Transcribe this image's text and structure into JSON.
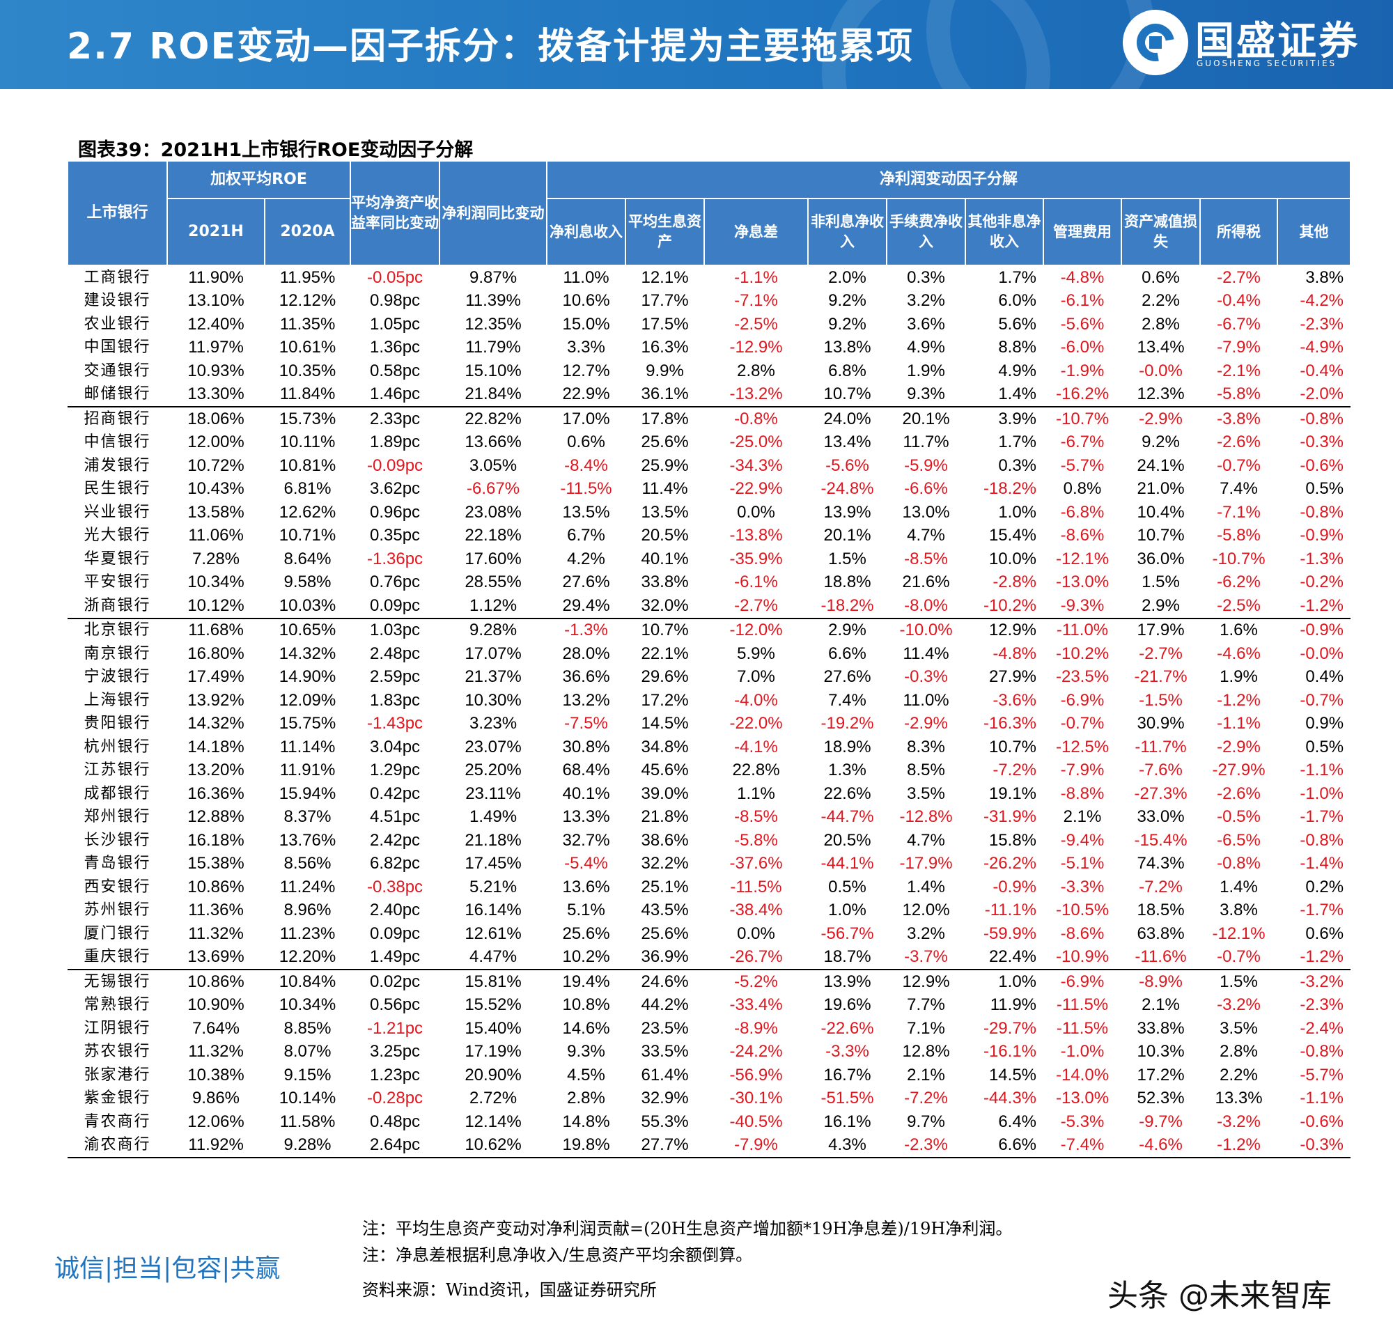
{
  "header": {
    "title": "2.7 ROE变动—因子拆分：拨备计提为主要拖累项",
    "logo_cn": "国盛证券",
    "logo_en": "GUOSHENG SECURITIES"
  },
  "caption": "图表39：2021H1上市银行ROE变动因子分解",
  "table": {
    "headers": {
      "bank": "上市银行",
      "weighted_roe": "加权平均ROE",
      "y2021h": "2021H",
      "y2020a": "2020A",
      "roe_change": "平均净资产收益率同比变动",
      "np_change": "净利润同比变动",
      "factor_group": "净利润变动因子分解",
      "factors": [
        "净利息收入",
        "平均生息资产",
        "净息差",
        "非利息净收入",
        "手续费净收入",
        "其他非息净收入",
        "管理费用",
        "资产减值损失",
        "所得税",
        "其他"
      ]
    },
    "rows": [
      [
        "工商银行",
        "11.90%",
        "11.95%",
        "-0.05pc",
        "9.87%",
        "11.0%",
        "12.1%",
        "-1.1%",
        "2.0%",
        "0.3%",
        "1.7%",
        "-4.8%",
        "0.6%",
        "-2.7%",
        "3.8%"
      ],
      [
        "建设银行",
        "13.10%",
        "12.12%",
        "0.98pc",
        "11.39%",
        "10.6%",
        "17.7%",
        "-7.1%",
        "9.2%",
        "3.2%",
        "6.0%",
        "-6.1%",
        "2.2%",
        "-0.4%",
        "-4.2%"
      ],
      [
        "农业银行",
        "12.40%",
        "11.35%",
        "1.05pc",
        "12.35%",
        "15.0%",
        "17.5%",
        "-2.5%",
        "9.2%",
        "3.6%",
        "5.6%",
        "-5.6%",
        "2.8%",
        "-6.7%",
        "-2.3%"
      ],
      [
        "中国银行",
        "11.97%",
        "10.61%",
        "1.36pc",
        "11.79%",
        "3.3%",
        "16.3%",
        "-12.9%",
        "13.8%",
        "4.9%",
        "8.8%",
        "-6.0%",
        "13.4%",
        "-7.9%",
        "-4.9%"
      ],
      [
        "交通银行",
        "10.93%",
        "10.35%",
        "0.58pc",
        "15.10%",
        "12.7%",
        "9.9%",
        "2.8%",
        "6.8%",
        "1.9%",
        "4.9%",
        "-1.9%",
        "-0.0%",
        "-2.1%",
        "-0.4%"
      ],
      [
        "邮储银行",
        "13.30%",
        "11.84%",
        "1.46pc",
        "21.84%",
        "22.9%",
        "36.1%",
        "-13.2%",
        "10.7%",
        "9.3%",
        "1.4%",
        "-16.2%",
        "12.3%",
        "-5.8%",
        "-2.0%"
      ],
      [
        "招商银行",
        "18.06%",
        "15.73%",
        "2.33pc",
        "22.82%",
        "17.0%",
        "17.8%",
        "-0.8%",
        "24.0%",
        "20.1%",
        "3.9%",
        "-10.7%",
        "-2.9%",
        "-3.8%",
        "-0.8%"
      ],
      [
        "中信银行",
        "12.00%",
        "10.11%",
        "1.89pc",
        "13.66%",
        "0.6%",
        "25.6%",
        "-25.0%",
        "13.4%",
        "11.7%",
        "1.7%",
        "-6.7%",
        "9.2%",
        "-2.6%",
        "-0.3%"
      ],
      [
        "浦发银行",
        "10.72%",
        "10.81%",
        "-0.09pc",
        "3.05%",
        "-8.4%",
        "25.9%",
        "-34.3%",
        "-5.6%",
        "-5.9%",
        "0.3%",
        "-5.7%",
        "24.1%",
        "-0.7%",
        "-0.6%"
      ],
      [
        "民生银行",
        "10.43%",
        "6.81%",
        "3.62pc",
        "-6.67%",
        "-11.5%",
        "11.4%",
        "-22.9%",
        "-24.8%",
        "-6.6%",
        "-18.2%",
        "0.8%",
        "21.0%",
        "7.4%",
        "0.5%"
      ],
      [
        "兴业银行",
        "13.58%",
        "12.62%",
        "0.96pc",
        "23.08%",
        "13.5%",
        "13.5%",
        "0.0%",
        "13.9%",
        "13.0%",
        "1.0%",
        "-6.8%",
        "10.4%",
        "-7.1%",
        "-0.8%"
      ],
      [
        "光大银行",
        "11.06%",
        "10.71%",
        "0.35pc",
        "22.18%",
        "6.7%",
        "20.5%",
        "-13.8%",
        "20.1%",
        "4.7%",
        "15.4%",
        "-8.6%",
        "10.7%",
        "-5.8%",
        "-0.9%"
      ],
      [
        "华夏银行",
        "7.28%",
        "8.64%",
        "-1.36pc",
        "17.60%",
        "4.2%",
        "40.1%",
        "-35.9%",
        "1.5%",
        "-8.5%",
        "10.0%",
        "-12.1%",
        "36.0%",
        "-10.7%",
        "-1.3%"
      ],
      [
        "平安银行",
        "10.34%",
        "9.58%",
        "0.76pc",
        "28.55%",
        "27.6%",
        "33.8%",
        "-6.1%",
        "18.8%",
        "21.6%",
        "-2.8%",
        "-13.0%",
        "1.5%",
        "-6.2%",
        "-0.2%"
      ],
      [
        "浙商银行",
        "10.12%",
        "10.03%",
        "0.09pc",
        "1.12%",
        "29.4%",
        "32.0%",
        "-2.7%",
        "-18.2%",
        "-8.0%",
        "-10.2%",
        "-9.3%",
        "2.9%",
        "-2.5%",
        "-1.2%"
      ],
      [
        "北京银行",
        "11.68%",
        "10.65%",
        "1.03pc",
        "9.28%",
        "-1.3%",
        "10.7%",
        "-12.0%",
        "2.9%",
        "-10.0%",
        "12.9%",
        "-11.0%",
        "17.9%",
        "1.6%",
        "-0.9%"
      ],
      [
        "南京银行",
        "16.80%",
        "14.32%",
        "2.48pc",
        "17.07%",
        "28.0%",
        "22.1%",
        "5.9%",
        "6.6%",
        "11.4%",
        "-4.8%",
        "-10.2%",
        "-2.7%",
        "-4.6%",
        "-0.0%"
      ],
      [
        "宁波银行",
        "17.49%",
        "14.90%",
        "2.59pc",
        "21.37%",
        "36.6%",
        "29.6%",
        "7.0%",
        "27.6%",
        "-0.3%",
        "27.9%",
        "-23.5%",
        "-21.7%",
        "1.9%",
        "0.4%"
      ],
      [
        "上海银行",
        "13.92%",
        "12.09%",
        "1.83pc",
        "10.30%",
        "13.2%",
        "17.2%",
        "-4.0%",
        "7.4%",
        "11.0%",
        "-3.6%",
        "-6.9%",
        "-1.5%",
        "-1.2%",
        "-0.7%"
      ],
      [
        "贵阳银行",
        "14.32%",
        "15.75%",
        "-1.43pc",
        "3.23%",
        "-7.5%",
        "14.5%",
        "-22.0%",
        "-19.2%",
        "-2.9%",
        "-16.3%",
        "-0.7%",
        "30.9%",
        "-1.1%",
        "0.9%"
      ],
      [
        "杭州银行",
        "14.18%",
        "11.14%",
        "3.04pc",
        "23.07%",
        "30.8%",
        "34.8%",
        "-4.1%",
        "18.9%",
        "8.3%",
        "10.7%",
        "-12.5%",
        "-11.7%",
        "-2.9%",
        "0.5%"
      ],
      [
        "江苏银行",
        "13.20%",
        "11.91%",
        "1.29pc",
        "25.20%",
        "68.4%",
        "45.6%",
        "22.8%",
        "1.3%",
        "8.5%",
        "-7.2%",
        "-7.9%",
        "-7.6%",
        "-27.9%",
        "-1.1%"
      ],
      [
        "成都银行",
        "16.36%",
        "15.94%",
        "0.42pc",
        "23.11%",
        "40.1%",
        "39.0%",
        "1.1%",
        "22.6%",
        "3.5%",
        "19.1%",
        "-8.8%",
        "-27.3%",
        "-2.6%",
        "-1.0%"
      ],
      [
        "郑州银行",
        "12.88%",
        "8.37%",
        "4.51pc",
        "1.49%",
        "13.3%",
        "21.8%",
        "-8.5%",
        "-44.7%",
        "-12.8%",
        "-31.9%",
        "2.1%",
        "33.0%",
        "-0.5%",
        "-1.7%"
      ],
      [
        "长沙银行",
        "16.18%",
        "13.76%",
        "2.42pc",
        "21.18%",
        "32.7%",
        "38.6%",
        "-5.8%",
        "20.5%",
        "4.7%",
        "15.8%",
        "-9.4%",
        "-15.4%",
        "-6.5%",
        "-0.8%"
      ],
      [
        "青岛银行",
        "15.38%",
        "8.56%",
        "6.82pc",
        "17.45%",
        "-5.4%",
        "32.2%",
        "-37.6%",
        "-44.1%",
        "-17.9%",
        "-26.2%",
        "-5.1%",
        "74.3%",
        "-0.8%",
        "-1.4%"
      ],
      [
        "西安银行",
        "10.86%",
        "11.24%",
        "-0.38pc",
        "5.21%",
        "13.6%",
        "25.1%",
        "-11.5%",
        "0.5%",
        "1.4%",
        "-0.9%",
        "-3.3%",
        "-7.2%",
        "1.4%",
        "0.2%"
      ],
      [
        "苏州银行",
        "11.36%",
        "8.96%",
        "2.40pc",
        "16.14%",
        "5.1%",
        "43.5%",
        "-38.4%",
        "1.0%",
        "12.0%",
        "-11.1%",
        "-10.5%",
        "18.5%",
        "3.8%",
        "-1.7%"
      ],
      [
        "厦门银行",
        "11.32%",
        "11.23%",
        "0.09pc",
        "12.61%",
        "25.6%",
        "25.6%",
        "0.0%",
        "-56.7%",
        "3.2%",
        "-59.9%",
        "-8.6%",
        "63.8%",
        "-12.1%",
        "0.6%"
      ],
      [
        "重庆银行",
        "13.69%",
        "12.20%",
        "1.49pc",
        "4.47%",
        "10.2%",
        "36.9%",
        "-26.7%",
        "18.7%",
        "-3.7%",
        "22.4%",
        "-10.9%",
        "-11.6%",
        "-0.7%",
        "-1.2%"
      ],
      [
        "无锡银行",
        "10.86%",
        "10.84%",
        "0.02pc",
        "15.81%",
        "19.4%",
        "24.6%",
        "-5.2%",
        "13.9%",
        "12.9%",
        "1.0%",
        "-6.9%",
        "-8.9%",
        "1.5%",
        "-3.2%"
      ],
      [
        "常熟银行",
        "10.90%",
        "10.34%",
        "0.56pc",
        "15.52%",
        "10.8%",
        "44.2%",
        "-33.4%",
        "19.6%",
        "7.7%",
        "11.9%",
        "-11.5%",
        "2.1%",
        "-3.2%",
        "-2.3%"
      ],
      [
        "江阴银行",
        "7.64%",
        "8.85%",
        "-1.21pc",
        "15.40%",
        "14.6%",
        "23.5%",
        "-8.9%",
        "-22.6%",
        "7.1%",
        "-29.7%",
        "-11.5%",
        "33.8%",
        "3.5%",
        "-2.4%"
      ],
      [
        "苏农银行",
        "11.32%",
        "8.07%",
        "3.25pc",
        "17.19%",
        "9.3%",
        "33.5%",
        "-24.2%",
        "-3.3%",
        "12.8%",
        "-16.1%",
        "-1.0%",
        "10.3%",
        "2.8%",
        "-0.8%"
      ],
      [
        "张家港行",
        "10.38%",
        "9.15%",
        "1.23pc",
        "20.90%",
        "4.5%",
        "61.4%",
        "-56.9%",
        "16.7%",
        "2.1%",
        "14.5%",
        "-14.0%",
        "17.2%",
        "2.2%",
        "-5.7%"
      ],
      [
        "紫金银行",
        "9.86%",
        "10.14%",
        "-0.28pc",
        "2.72%",
        "2.8%",
        "32.9%",
        "-30.1%",
        "-51.5%",
        "-7.2%",
        "-44.3%",
        "-13.0%",
        "52.3%",
        "13.3%",
        "-1.1%"
      ],
      [
        "青农商行",
        "12.06%",
        "11.58%",
        "0.48pc",
        "12.14%",
        "14.8%",
        "55.3%",
        "-40.5%",
        "16.1%",
        "9.7%",
        "6.4%",
        "-5.3%",
        "-9.7%",
        "-3.2%",
        "-0.6%"
      ],
      [
        "渝农商行",
        "11.92%",
        "9.28%",
        "2.64pc",
        "10.62%",
        "19.8%",
        "27.7%",
        "-7.9%",
        "4.3%",
        "-2.3%",
        "6.6%",
        "-7.4%",
        "-4.6%",
        "-1.2%",
        "-0.3%"
      ]
    ],
    "group_breaks_before": [
      "招商银行",
      "北京银行",
      "无锡银行"
    ]
  },
  "notes": [
    "注：平均生息资产变动对净利润贡献=(20H生息资产增加额*19H净息差)/19H净利润。",
    "注：净息差根据利息净收入/生息资产平均余额倒算。"
  ],
  "source": "资料来源：Wind资讯，国盛证券研究所",
  "motto": "诚信|担当|包容|共赢",
  "watermark": "头条 @未来智库",
  "colors": {
    "banner": "#1f74bf",
    "header_fill": "#3d7dc4",
    "negative_text": "#e0161f"
  }
}
